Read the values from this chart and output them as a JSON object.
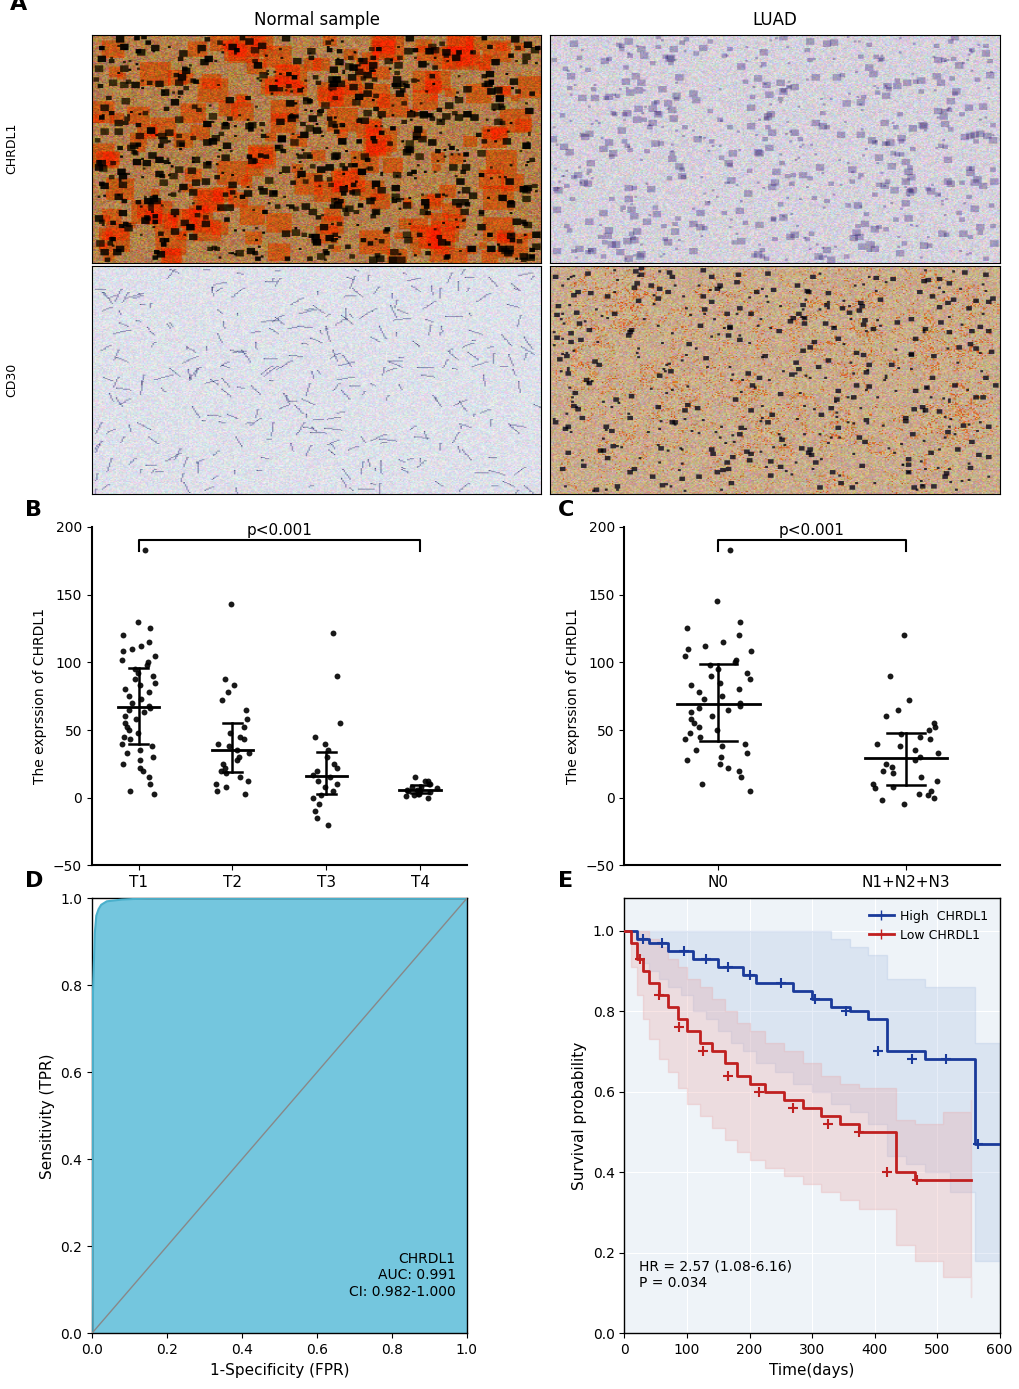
{
  "panel_A_label": "A",
  "panel_B_label": "B",
  "panel_C_label": "C",
  "panel_D_label": "D",
  "panel_E_label": "E",
  "col_labels": [
    "Normal sample",
    "LUAD"
  ],
  "row_labels_A": [
    "CHRDL1",
    "CD30"
  ],
  "scatter_B": {
    "ylabel": "The exprssion of CHRDL1",
    "groups": [
      "T1",
      "T2",
      "T3",
      "T4"
    ],
    "ylim": [
      -50,
      200
    ],
    "yticks": [
      -50,
      0,
      50,
      100,
      150,
      200
    ],
    "T1": [
      183,
      130,
      125,
      120,
      115,
      112,
      110,
      108,
      105,
      102,
      100,
      98,
      95,
      92,
      90,
      88,
      85,
      83,
      80,
      78,
      75,
      73,
      70,
      68,
      66,
      65,
      63,
      60,
      58,
      55,
      52,
      50,
      48,
      45,
      43,
      40,
      38,
      35,
      33,
      30,
      28,
      25,
      22,
      20,
      15,
      10,
      5,
      3
    ],
    "T2": [
      143,
      88,
      83,
      78,
      72,
      65,
      58,
      52,
      48,
      45,
      43,
      40,
      38,
      35,
      33,
      30,
      28,
      25,
      22,
      20,
      18,
      15,
      12,
      10,
      8,
      5,
      3
    ],
    "T3": [
      122,
      90,
      55,
      45,
      40,
      35,
      30,
      25,
      22,
      20,
      17,
      15,
      12,
      10,
      8,
      5,
      2,
      0,
      -5,
      -10,
      -15,
      -20
    ],
    "T4": [
      15,
      12,
      12,
      10,
      10,
      8,
      8,
      7,
      6,
      6,
      5,
      5,
      4,
      3,
      3,
      2,
      1,
      0
    ]
  },
  "scatter_C": {
    "ylabel": "The exprssion of CHRDL1",
    "groups": [
      "N0",
      "N1+N2+N3"
    ],
    "ylim": [
      -50,
      200
    ],
    "yticks": [
      -50,
      0,
      50,
      100,
      150,
      200
    ],
    "N0": [
      183,
      145,
      130,
      125,
      120,
      115,
      112,
      110,
      108,
      105,
      102,
      100,
      98,
      95,
      92,
      90,
      88,
      85,
      83,
      80,
      78,
      75,
      73,
      70,
      68,
      66,
      65,
      63,
      60,
      58,
      55,
      52,
      50,
      48,
      45,
      43,
      40,
      38,
      35,
      33,
      30,
      28,
      25,
      22,
      20,
      15,
      10,
      5
    ],
    "N1N2N3": [
      120,
      90,
      72,
      65,
      60,
      55,
      52,
      50,
      47,
      45,
      43,
      40,
      38,
      35,
      33,
      30,
      28,
      25,
      23,
      20,
      18,
      15,
      12,
      10,
      8,
      7,
      5,
      3,
      2,
      0,
      -2,
      -5
    ]
  },
  "roc_D": {
    "xlabel": "1-Specificity (FPR)",
    "ylabel": "Sensitivity (TPR)",
    "xlim": [
      0,
      1
    ],
    "ylim": [
      0,
      1
    ],
    "xticks": [
      0.0,
      0.2,
      0.4,
      0.6,
      0.8,
      1.0
    ],
    "yticks": [
      0.0,
      0.2,
      0.4,
      0.6,
      0.8,
      1.0
    ],
    "annotation": "CHRDL1\nAUC: 0.991\nCI: 0.982-1.000",
    "fill_color": "#74c6de",
    "line_color": "#4ab0cc"
  },
  "km_E": {
    "xlabel": "Time(days)",
    "ylabel": "Survival probability",
    "xlim": [
      0,
      600
    ],
    "ylim": [
      0.0,
      1.05
    ],
    "xticks": [
      0,
      100,
      200,
      300,
      400,
      500,
      600
    ],
    "yticks": [
      0.0,
      0.2,
      0.4,
      0.6,
      0.8,
      1.0
    ],
    "annotation": "HR = 2.57 (1.08-6.16)\nP = 0.034",
    "high_color": "#1a3a9a",
    "low_color": "#c02020",
    "high_fill": "#a0b8e0",
    "low_fill": "#e8a8a8",
    "legend": [
      "High  CHRDL1",
      "Low CHRDL1"
    ],
    "high_times": [
      0,
      15,
      20,
      30,
      40,
      55,
      70,
      90,
      110,
      130,
      150,
      170,
      190,
      210,
      240,
      270,
      300,
      330,
      360,
      390,
      420,
      450,
      480,
      520,
      560,
      600
    ],
    "high_surv": [
      1.0,
      1.0,
      0.98,
      0.98,
      0.97,
      0.97,
      0.95,
      0.95,
      0.93,
      0.93,
      0.91,
      0.91,
      0.89,
      0.87,
      0.87,
      0.85,
      0.83,
      0.81,
      0.8,
      0.78,
      0.7,
      0.7,
      0.68,
      0.68,
      0.47,
      0.47
    ],
    "high_upper": [
      1.0,
      1.0,
      1.0,
      1.0,
      1.0,
      1.0,
      1.0,
      1.0,
      1.0,
      1.0,
      1.0,
      1.0,
      1.0,
      1.0,
      1.0,
      1.0,
      1.0,
      0.98,
      0.96,
      0.94,
      0.88,
      0.88,
      0.86,
      0.86,
      0.72,
      0.72
    ],
    "high_lower": [
      1.0,
      1.0,
      0.94,
      0.92,
      0.9,
      0.88,
      0.86,
      0.84,
      0.8,
      0.78,
      0.75,
      0.72,
      0.7,
      0.67,
      0.65,
      0.62,
      0.6,
      0.57,
      0.55,
      0.52,
      0.44,
      0.42,
      0.4,
      0.35,
      0.18,
      0.15
    ],
    "low_times": [
      0,
      10,
      20,
      30,
      40,
      55,
      70,
      85,
      100,
      120,
      140,
      160,
      180,
      200,
      225,
      255,
      285,
      315,
      345,
      375,
      405,
      435,
      465,
      510,
      555
    ],
    "low_surv": [
      1.0,
      0.97,
      0.93,
      0.9,
      0.87,
      0.84,
      0.81,
      0.78,
      0.75,
      0.72,
      0.7,
      0.67,
      0.64,
      0.62,
      0.6,
      0.58,
      0.56,
      0.54,
      0.52,
      0.5,
      0.5,
      0.4,
      0.38,
      0.38,
      0.38
    ],
    "low_upper": [
      1.0,
      1.0,
      1.0,
      1.0,
      0.98,
      0.96,
      0.93,
      0.91,
      0.88,
      0.86,
      0.83,
      0.8,
      0.77,
      0.75,
      0.72,
      0.7,
      0.67,
      0.64,
      0.62,
      0.61,
      0.61,
      0.53,
      0.52,
      0.55,
      0.58
    ],
    "low_lower": [
      1.0,
      0.91,
      0.84,
      0.78,
      0.73,
      0.68,
      0.65,
      0.61,
      0.57,
      0.54,
      0.51,
      0.48,
      0.45,
      0.43,
      0.41,
      0.39,
      0.37,
      0.35,
      0.33,
      0.31,
      0.31,
      0.22,
      0.18,
      0.14,
      0.09
    ],
    "high_censor_times": [
      30,
      60,
      95,
      130,
      165,
      200,
      250,
      305,
      355,
      405,
      460,
      515,
      565
    ],
    "high_censor_surv": [
      0.98,
      0.97,
      0.95,
      0.93,
      0.91,
      0.89,
      0.87,
      0.83,
      0.8,
      0.7,
      0.68,
      0.68,
      0.47
    ],
    "low_censor_times": [
      25,
      55,
      88,
      125,
      165,
      215,
      270,
      325,
      375,
      420,
      468
    ],
    "low_censor_surv": [
      0.93,
      0.84,
      0.76,
      0.7,
      0.64,
      0.6,
      0.56,
      0.52,
      0.5,
      0.4,
      0.38
    ]
  },
  "bg_color": "#ffffff"
}
